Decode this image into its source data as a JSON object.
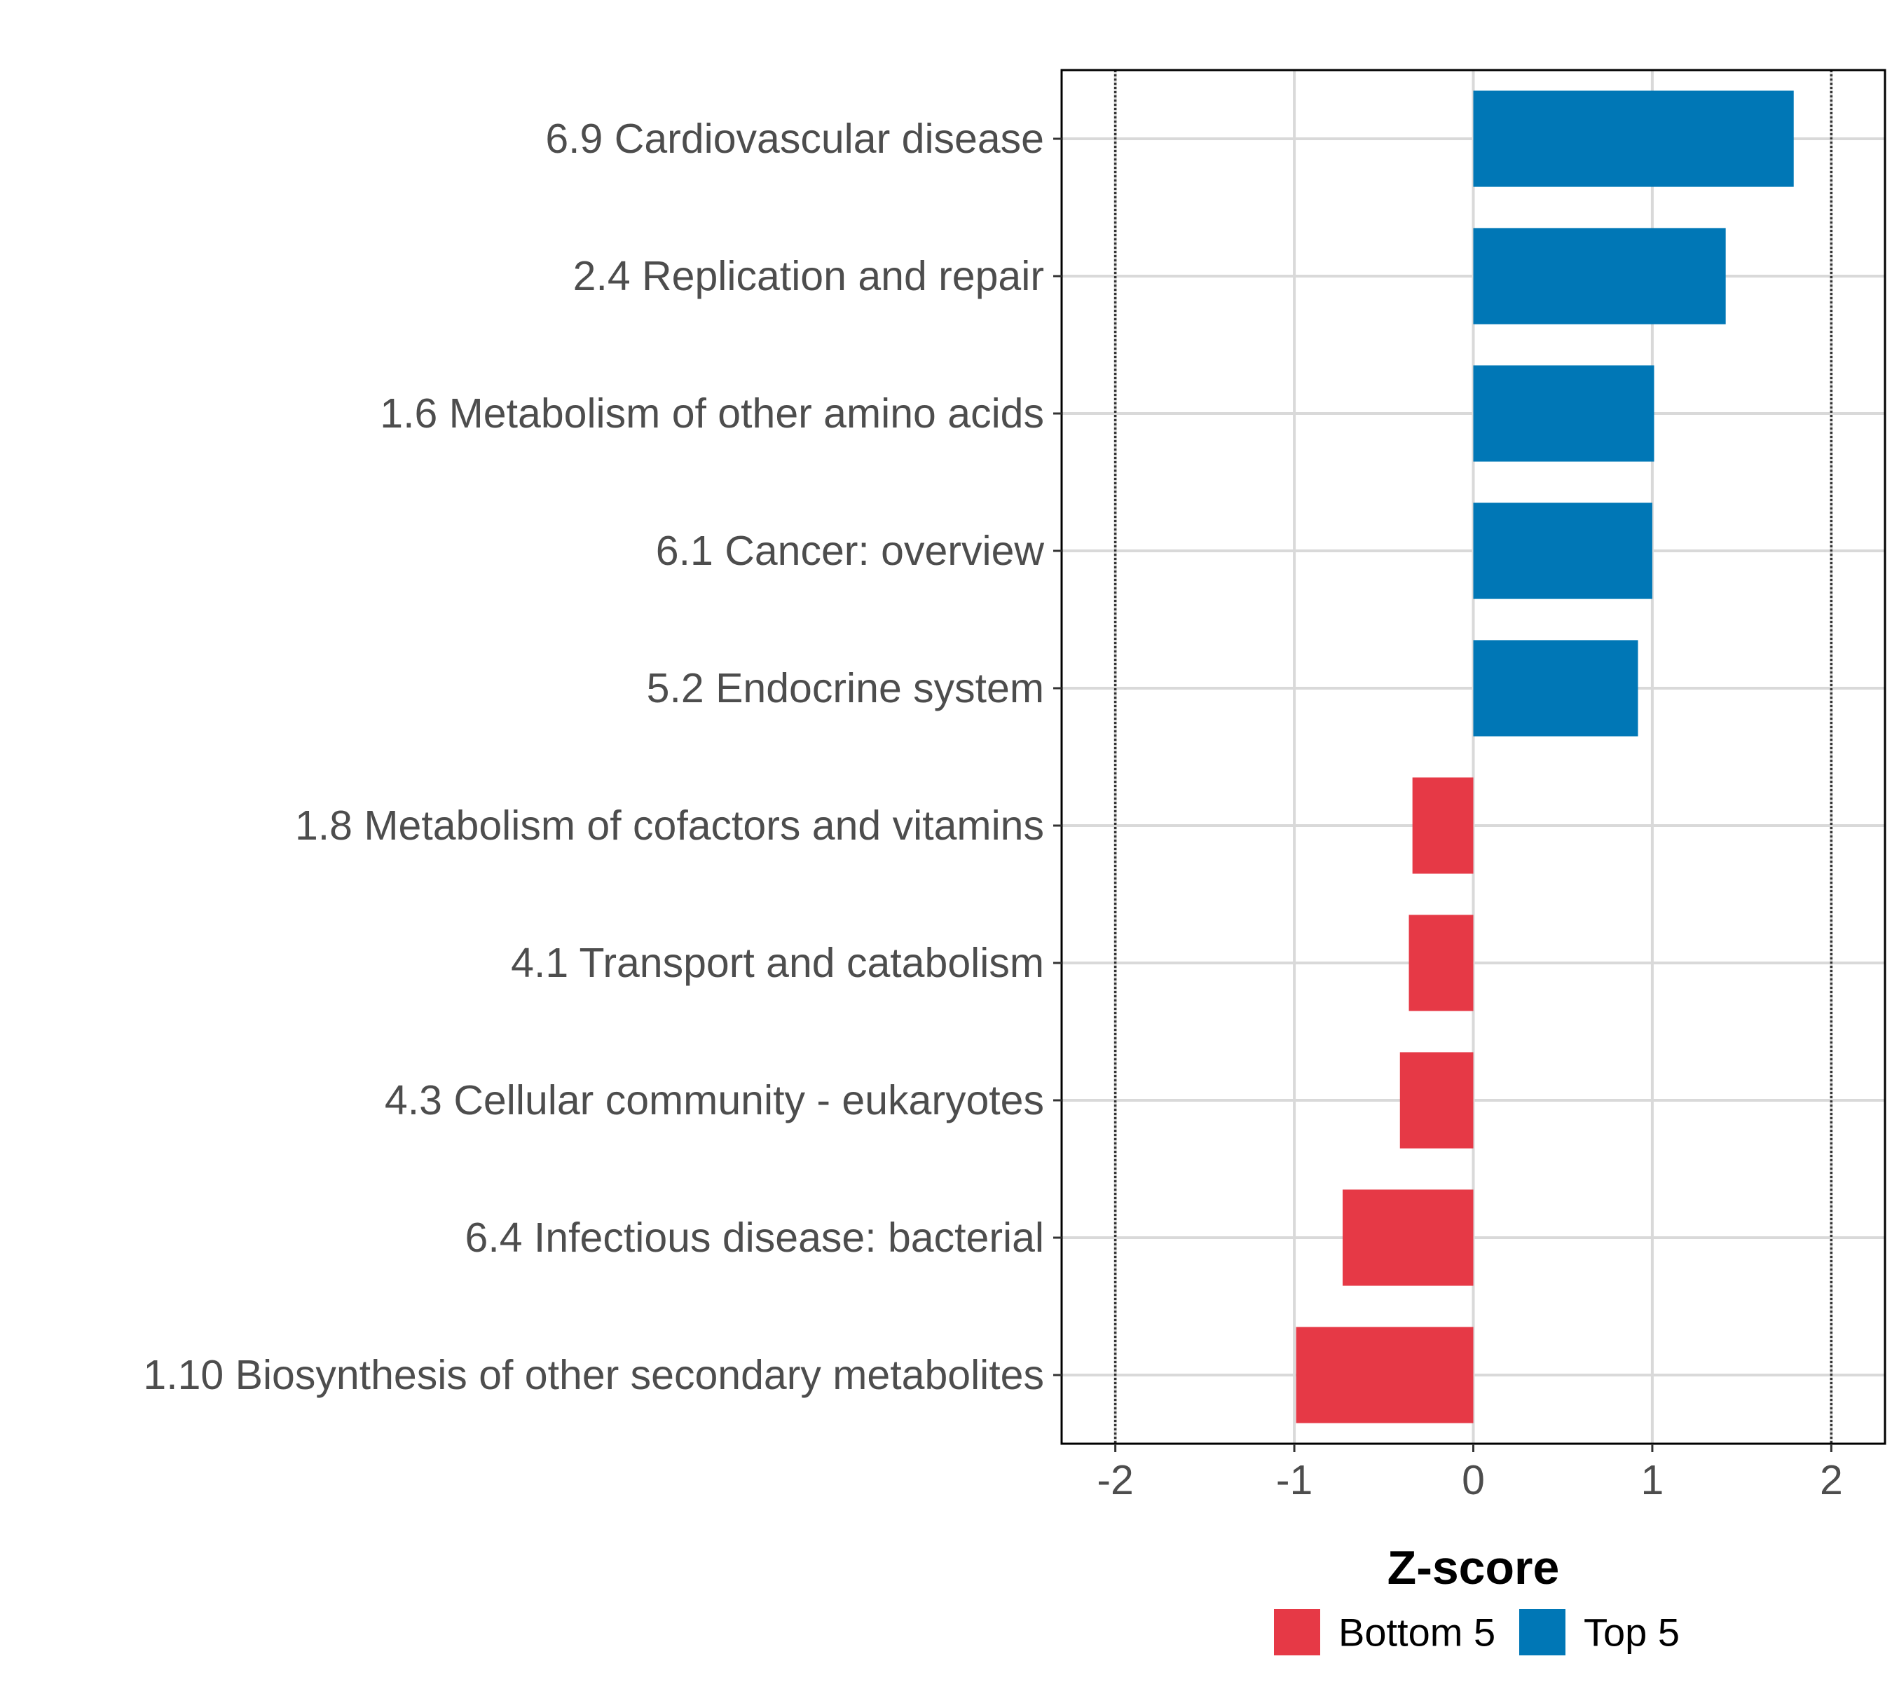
{
  "chart_data": {
    "type": "bar",
    "orientation": "horizontal",
    "xlabel": "Z-score",
    "ylabel": "",
    "xlim": [
      -2.3,
      2.3
    ],
    "xticks": [
      -2,
      -1,
      0,
      1,
      2
    ],
    "xtick_labels": [
      "-2",
      "-1",
      "0",
      "1",
      "2"
    ],
    "reference_lines": [
      -2,
      2
    ],
    "grid": true,
    "legend_position": "bottom",
    "categories": [
      "6.9 Cardiovascular disease",
      "2.4 Replication and repair",
      "1.6 Metabolism of other amino acids",
      "6.1 Cancer: overview",
      "5.2 Endocrine system",
      "1.8 Metabolism of cofactors and vitamins",
      "4.1 Transport and catabolism",
      "4.3 Cellular community - eukaryotes",
      "6.4 Infectious disease: bacterial",
      "1.10 Biosynthesis of other secondary metabolites"
    ],
    "values": [
      1.79,
      1.41,
      1.01,
      1.0,
      0.92,
      -0.34,
      -0.36,
      -0.41,
      -0.73,
      -0.99
    ],
    "groups": [
      "Top 5",
      "Top 5",
      "Top 5",
      "Top 5",
      "Top 5",
      "Bottom 5",
      "Bottom 5",
      "Bottom 5",
      "Bottom 5",
      "Bottom 5"
    ],
    "legend": [
      {
        "name": "Bottom 5",
        "color": "#e63946"
      },
      {
        "name": "Top 5",
        "color": "#0077b6"
      }
    ]
  }
}
